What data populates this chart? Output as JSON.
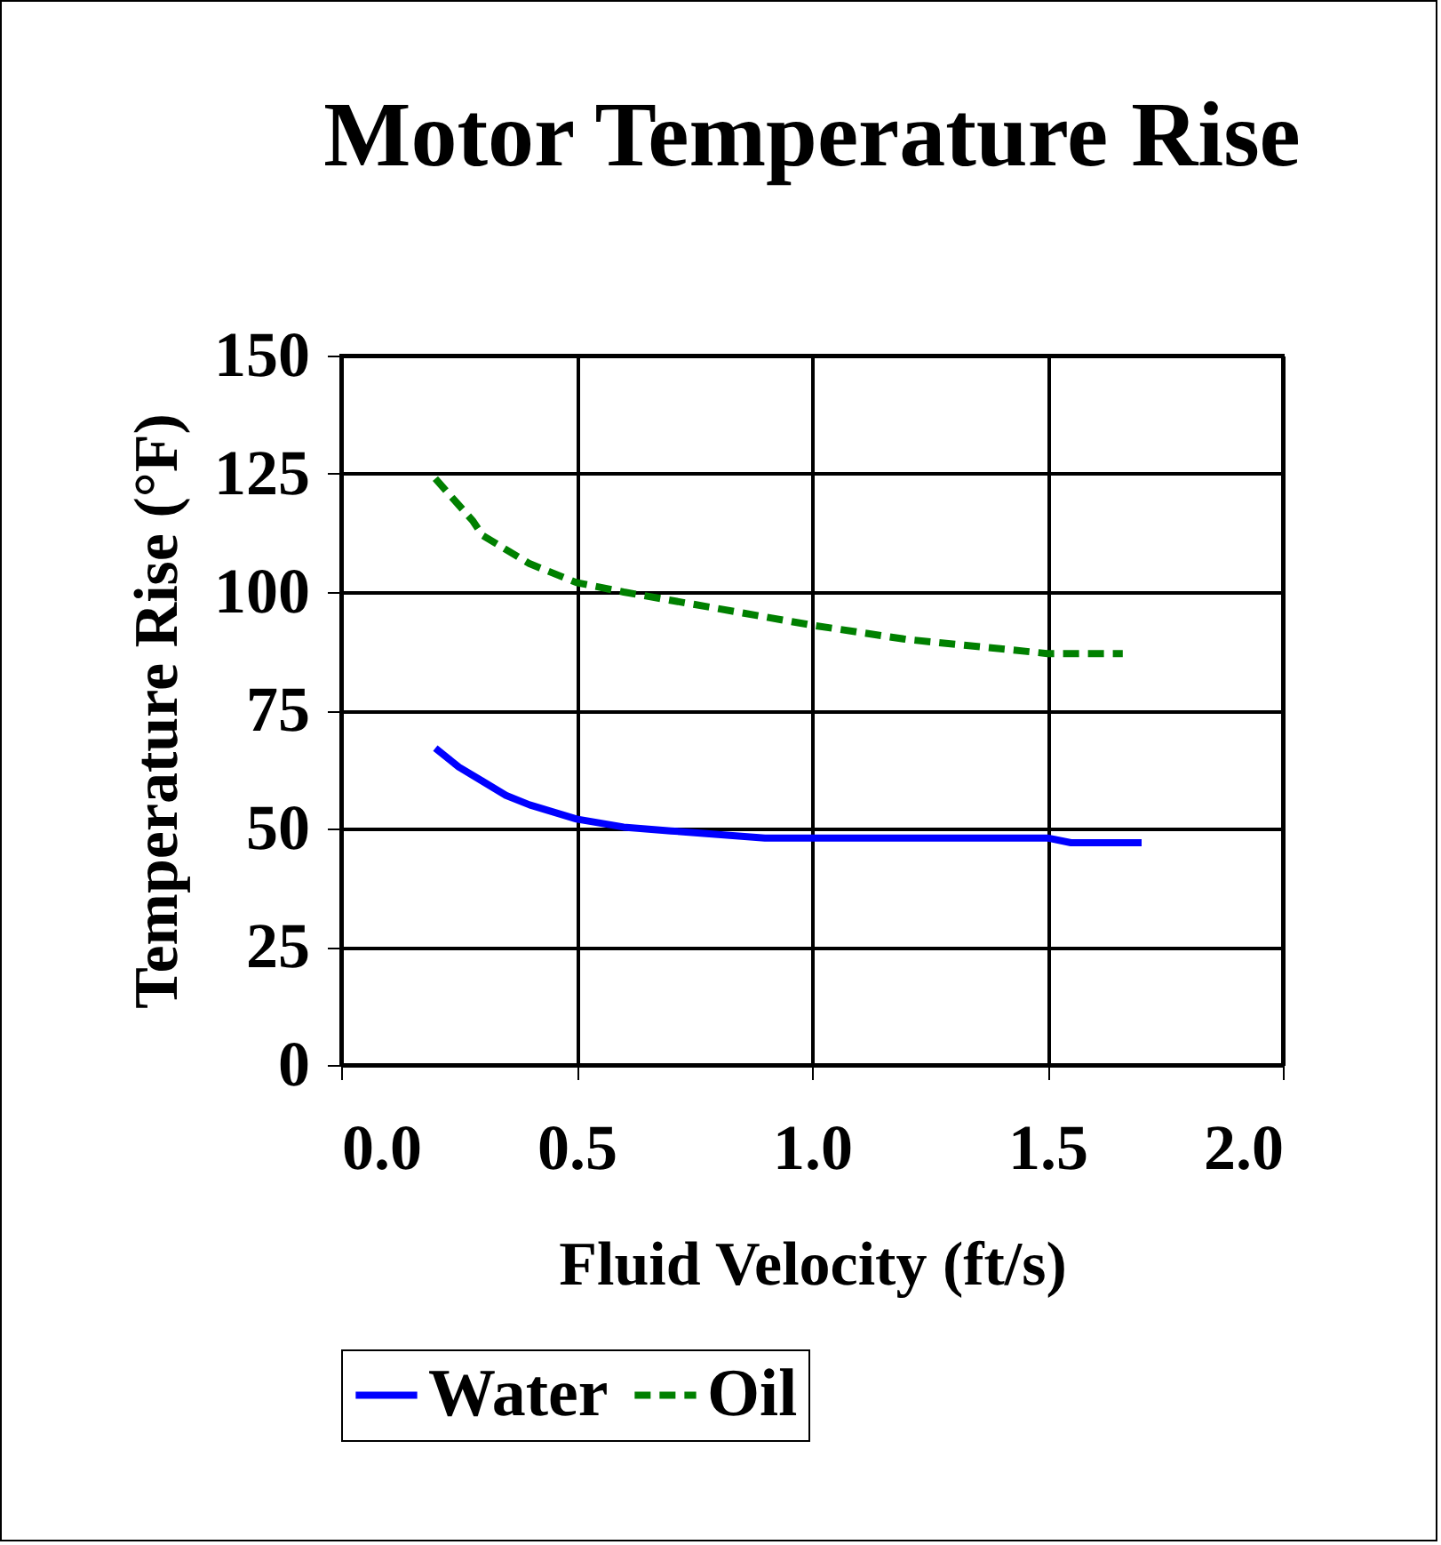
{
  "chart_data": {
    "type": "line",
    "title": "Motor Temperature Rise",
    "xlabel": "Fluid Velocity (ft/s)",
    "ylabel": "Temperature Rise (°F)",
    "xlim": [
      0,
      2
    ],
    "xticks": [
      {
        "value": 0,
        "label": "0.0"
      },
      {
        "value": 0.5,
        "label": "0.5"
      },
      {
        "value": 1,
        "label": "1.0"
      },
      {
        "value": 1.5,
        "label": "1.5"
      },
      {
        "value": 2,
        "label": "2.0"
      }
    ],
    "ylim": [
      0,
      150
    ],
    "yticks": [
      0,
      25,
      50,
      75,
      100,
      125,
      150
    ],
    "grid": true,
    "legend": "bottom",
    "marker": "none",
    "series": [
      {
        "name": "Water",
        "color": "#0000ff",
        "line_style": "solid",
        "x": [
          0.2,
          0.25,
          0.3,
          0.35,
          0.4,
          0.5,
          0.6,
          0.7,
          0.9,
          1.5,
          1.55,
          1.7
        ],
        "values": [
          67,
          63,
          60,
          57,
          55,
          52,
          50.3,
          49.5,
          48,
          48,
          47,
          47
        ]
      },
      {
        "name": "Oil",
        "color": "#008000",
        "line_style": "dashed",
        "x": [
          0.2,
          0.28,
          0.3,
          0.4,
          0.5,
          0.6,
          0.8,
          1.0,
          1.2,
          1.4,
          1.5,
          1.66
        ],
        "values": [
          124,
          115,
          112,
          106,
          102,
          100,
          96.5,
          93,
          90,
          88,
          87,
          87
        ]
      }
    ]
  }
}
